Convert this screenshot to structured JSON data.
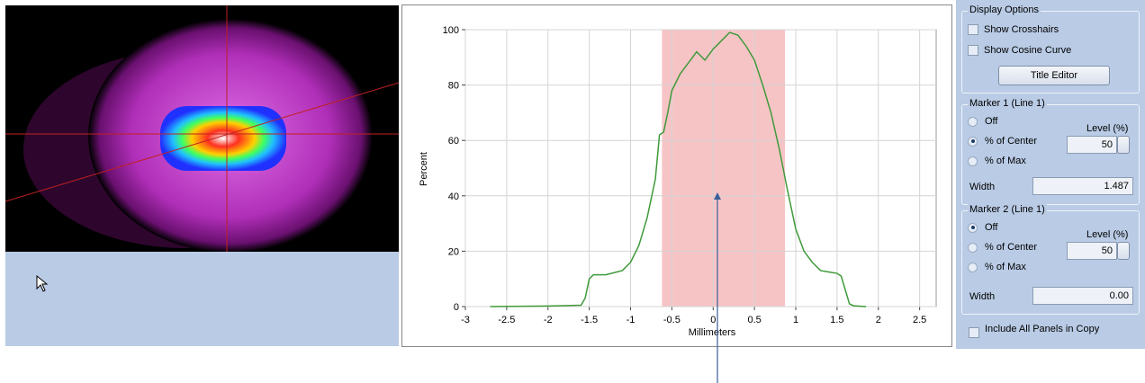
{
  "chart_data": {
    "type": "line",
    "xlabel": "Millimeters",
    "ylabel": "Percent",
    "x": [
      -2.7,
      -2,
      -1.6,
      -1.55,
      -1.5,
      -1.45,
      -1.3,
      -1.1,
      -1.0,
      -0.9,
      -0.8,
      -0.7,
      -0.65,
      -0.6,
      -0.55,
      -0.5,
      -0.4,
      -0.3,
      -0.2,
      -0.1,
      0,
      0.1,
      0.2,
      0.3,
      0.4,
      0.5,
      0.6,
      0.7,
      0.8,
      0.9,
      1.0,
      1.1,
      1.2,
      1.3,
      1.4,
      1.5,
      1.55,
      1.6,
      1.65,
      1.7,
      1.85
    ],
    "values": [
      0,
      0.2,
      0.5,
      3,
      10,
      11.5,
      11.5,
      13,
      16,
      22,
      32,
      46,
      62,
      63,
      70,
      78,
      84,
      88,
      92,
      89,
      93,
      96,
      99,
      98,
      94,
      89,
      80,
      70,
      57,
      42,
      28,
      20,
      16,
      13,
      12.5,
      12,
      11,
      6,
      1,
      0.3,
      0
    ],
    "color": "#3f9a3a",
    "band": {
      "from": -0.62,
      "to": 0.87,
      "color": "#f7c4c6"
    },
    "xlim": [
      -3,
      2.7
    ],
    "xticks": [
      -3,
      -2.5,
      -2,
      -1.5,
      -1,
      -0.5,
      0,
      0.5,
      1,
      1.5,
      2,
      2.5
    ],
    "ylim": [
      0,
      100
    ],
    "yticks": [
      0,
      20,
      40,
      60,
      80,
      100
    ],
    "grid": true
  },
  "display_options": {
    "title": "Display Options",
    "show_crosshairs": {
      "label": "Show Crosshairs",
      "checked": false
    },
    "show_cosine": {
      "label": "Show Cosine Curve",
      "checked": false
    },
    "button": "Title Editor"
  },
  "marker1": {
    "title": "Marker 1 (Line 1)",
    "options": [
      "Off",
      "% of Center",
      "% of Max"
    ],
    "selected": 1,
    "level_label": "Level (%)",
    "level": "50",
    "width_label": "Width",
    "width": "1.487"
  },
  "marker2": {
    "title": "Marker 2 (Line 1)",
    "options": [
      "Off",
      "% of Center",
      "% of Max"
    ],
    "selected": 0,
    "level_label": "Level (%)",
    "level": "50",
    "width_label": "Width",
    "width": "0.00"
  },
  "include": {
    "label": "Include All Panels in Copy",
    "checked": false
  }
}
